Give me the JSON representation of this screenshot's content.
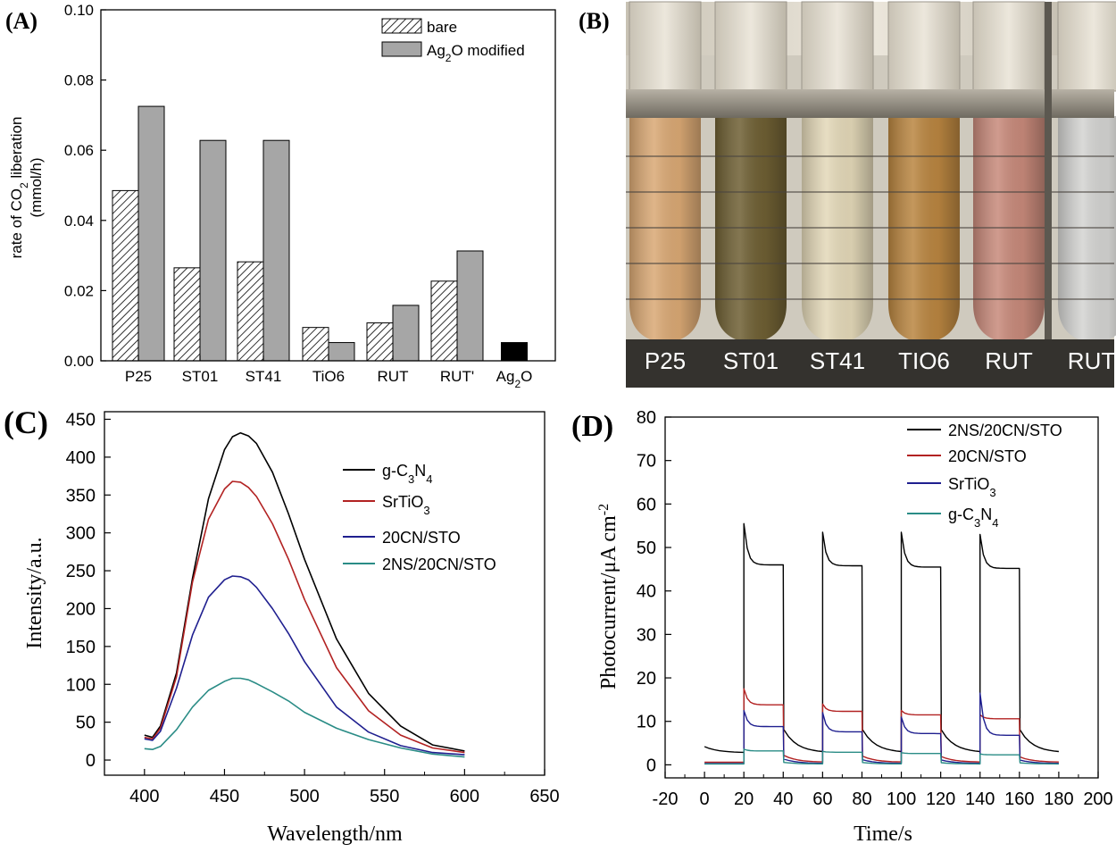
{
  "chart_data": [
    {
      "panel": "(A)",
      "type": "bar",
      "categories": [
        "P25",
        "ST01",
        "ST41",
        "TiO6",
        "RUT",
        "RUT'",
        "Ag2O"
      ],
      "category_display": [
        {
          "main": "P25",
          "sub": "",
          "rest": ""
        },
        {
          "main": "ST01",
          "sub": "",
          "rest": ""
        },
        {
          "main": "ST41",
          "sub": "",
          "rest": ""
        },
        {
          "main": "TiO6",
          "sub": "",
          "rest": ""
        },
        {
          "main": "RUT",
          "sub": "",
          "rest": ""
        },
        {
          "main": "RUT'",
          "sub": "",
          "rest": ""
        },
        {
          "main": "Ag",
          "sub": "2",
          "rest": "O"
        }
      ],
      "series": [
        {
          "name": "bare",
          "pattern": "hatch",
          "values": [
            0.0485,
            0.0265,
            0.0282,
            0.0095,
            0.0108,
            0.0227,
            null
          ]
        },
        {
          "name": "Ag2O modified",
          "pattern": "solid",
          "color": "#a6a6a6",
          "values": [
            0.0725,
            0.0628,
            0.0628,
            0.0052,
            0.0158,
            0.0313,
            null
          ]
        },
        {
          "name": "Ag2O",
          "pattern": "solid",
          "color": "#000000",
          "values": [
            null,
            null,
            null,
            null,
            null,
            null,
            0.0052
          ]
        }
      ],
      "legend": [
        {
          "main": "bare",
          "sub": "",
          "rest": ""
        },
        {
          "main": "Ag",
          "sub": "2",
          "rest": "O modified"
        }
      ],
      "ylabel_line1": {
        "main": "rate of CO",
        "sub": "2",
        "rest": " liberation"
      },
      "ylabel_line2": "(mmol/h)",
      "ylim": [
        0,
        0.1
      ],
      "yticks": [
        "0.00",
        "0.02",
        "0.04",
        "0.06",
        "0.08",
        "0.10"
      ],
      "legend_position": "top-right"
    },
    {
      "panel": "(B)",
      "type": "photo",
      "tube_labels": [
        "P25",
        "ST01",
        "ST41",
        "TIO6",
        "RUT",
        "RUT'"
      ],
      "tube_colors": [
        "#d9a874",
        "#6e5f33",
        "#e3d8b8",
        "#b98540",
        "#c7897a",
        "#d3d3d1"
      ]
    },
    {
      "panel": "(C)",
      "type": "line",
      "xlabel": "Wavelength/nm",
      "ylabel": "Intensity/a.u.",
      "xlim": [
        375,
        650
      ],
      "ylim": [
        -20,
        460
      ],
      "xticks": [
        400,
        450,
        500,
        550,
        600,
        650
      ],
      "yticks": [
        0,
        50,
        100,
        150,
        200,
        250,
        300,
        350,
        400,
        450
      ],
      "x": [
        400,
        405,
        410,
        420,
        430,
        440,
        450,
        455,
        460,
        465,
        470,
        480,
        490,
        500,
        520,
        540,
        560,
        580,
        600
      ],
      "series": [
        {
          "name": "g-C3N4",
          "color": "#000000",
          "values": [
            33,
            30,
            45,
            115,
            240,
            345,
            410,
            427,
            432,
            428,
            418,
            380,
            325,
            265,
            160,
            88,
            45,
            20,
            12
          ]
        },
        {
          "name": "SrTiO3",
          "color": "#b22222",
          "values": [
            30,
            28,
            42,
            110,
            235,
            318,
            358,
            368,
            367,
            360,
            348,
            312,
            265,
            212,
            122,
            65,
            33,
            16,
            10
          ]
        },
        {
          "name": "20CN/STO",
          "color": "#1f1f8f",
          "values": [
            28,
            26,
            38,
            95,
            165,
            215,
            238,
            243,
            242,
            238,
            228,
            200,
            167,
            130,
            70,
            37,
            19,
            10,
            7
          ]
        },
        {
          "name": "2NS/20CN/STO",
          "color": "#2a8c86",
          "values": [
            15,
            14,
            18,
            40,
            70,
            92,
            104,
            108,
            108,
            106,
            101,
            90,
            78,
            63,
            42,
            27,
            16,
            8,
            4
          ]
        }
      ],
      "legend": [
        {
          "main": "g-C",
          "sub": "3",
          "mid": "N",
          "sub2": "4"
        },
        {
          "main": "SrTiO",
          "sub": "3",
          "mid": "",
          "sub2": ""
        },
        {
          "main": "20CN/STO",
          "sub": "",
          "mid": "",
          "sub2": ""
        },
        {
          "main": "2NS/20CN/STO",
          "sub": "",
          "mid": "",
          "sub2": ""
        }
      ],
      "legend_position": "top-right"
    },
    {
      "panel": "(D)",
      "type": "line",
      "subtype": "chopped photocurrent",
      "xlabel": "Time/s",
      "ylabel_main": "Photocurrent/μA cm",
      "ylabel_sup": "-2",
      "xlim": [
        -20,
        200
      ],
      "ylim": [
        -3,
        80
      ],
      "xticks": [
        -20,
        0,
        20,
        40,
        60,
        80,
        100,
        120,
        140,
        160,
        180,
        200
      ],
      "yticks": [
        0,
        10,
        20,
        30,
        40,
        50,
        60,
        70,
        80
      ],
      "light_on_intervals": [
        [
          20,
          40
        ],
        [
          60,
          80
        ],
        [
          100,
          120
        ],
        [
          140,
          160
        ]
      ],
      "series": [
        {
          "name": "2NS/20CN/STO",
          "color": "#000000",
          "dark_start": 4.2,
          "dark_end": 2.8,
          "on_values": [
            [
              55.5,
              46.0
            ],
            [
              53.5,
              45.8
            ],
            [
              53.5,
              45.5
            ],
            [
              53.0,
              45.2
            ]
          ]
        },
        {
          "name": "20CN/STO",
          "color": "#b22222",
          "dark_start": 0.6,
          "dark_end": 0.6,
          "on_values": [
            [
              17.5,
              13.8
            ],
            [
              14.0,
              12.3
            ],
            [
              12.5,
              11.5
            ],
            [
              11.5,
              10.6
            ]
          ]
        },
        {
          "name": "SrTiO3",
          "color": "#1f1f8f",
          "dark_start": 0.3,
          "dark_end": 0.3,
          "on_values": [
            [
              12.5,
              8.8
            ],
            [
              12.0,
              7.6
            ],
            [
              11.0,
              7.2
            ],
            [
              16.5,
              6.8
            ]
          ]
        },
        {
          "name": "g-C3N4",
          "color": "#2a8c86",
          "dark_start": 0.2,
          "dark_end": 0.2,
          "on_values": [
            [
              3.6,
              3.2
            ],
            [
              3.1,
              2.9
            ],
            [
              2.8,
              2.6
            ],
            [
              2.5,
              2.3
            ]
          ]
        }
      ],
      "legend": [
        {
          "main": "2NS/20CN/STO",
          "sub": "",
          "mid": "",
          "sub2": ""
        },
        {
          "main": "20CN/STO",
          "sub": "",
          "mid": "",
          "sub2": ""
        },
        {
          "main": "SrTiO",
          "sub": "3",
          "mid": "",
          "sub2": ""
        },
        {
          "main": "g-C",
          "sub": "3",
          "mid": "N",
          "sub2": "4"
        }
      ],
      "legend_position": "top-right"
    }
  ]
}
